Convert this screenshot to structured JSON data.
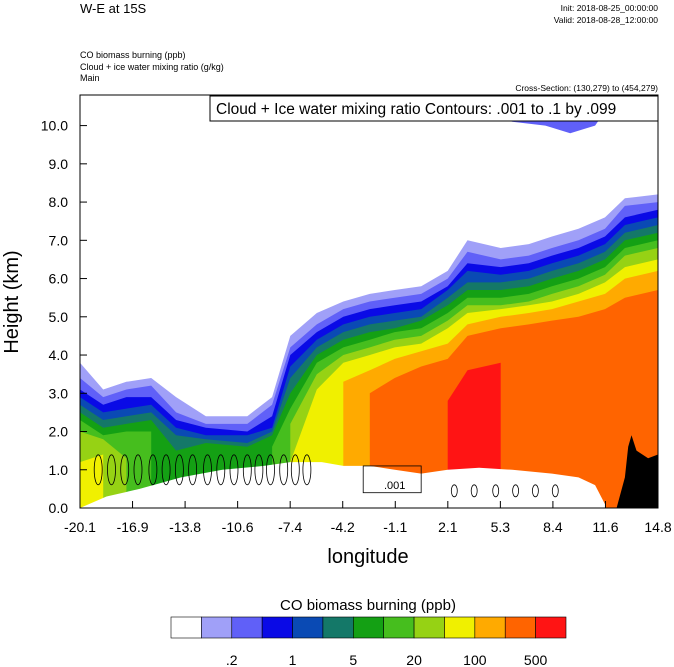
{
  "header": {
    "title": "W-E at 15S",
    "init": "Init: 2018-08-25_00:00:00",
    "valid": "Valid: 2018-08-28_12:00:00",
    "field_lines": [
      "CO biomass burning   (ppb)",
      "Cloud + ice water mixing ratio   (g/kg)",
      "Main"
    ],
    "cross_section": "Cross-Section: (130,279) to (454,279)"
  },
  "chart_data": {
    "type": "heatmap",
    "title": "W-E at 15S",
    "xlabel": "longitude",
    "ylabel": "Height (km)",
    "x_ticks": [
      "-20.1",
      "-16.9",
      "-13.8",
      "-10.6",
      "-7.4",
      "-4.2",
      "-1.1",
      "2.1",
      "5.3",
      "8.4",
      "11.6",
      "14.8"
    ],
    "x_range": [
      -20.1,
      14.8
    ],
    "y_ticks": [
      "0.0",
      "1.0",
      "2.0",
      "3.0",
      "4.0",
      "5.0",
      "6.0",
      "7.0",
      "8.0",
      "9.0",
      "10.0"
    ],
    "y_range": [
      0,
      10.8
    ],
    "contour_annotation": "Cloud + Ice water mixing ratio Contours: .001 to .1 by .099",
    "contour_label": ".001",
    "colorbar": {
      "title": "CO biomass burning  (ppb)",
      "colors": [
        "#ffffff",
        "#a0a0f8",
        "#6060f8",
        "#0a0ae6",
        "#0a4ab4",
        "#147868",
        "#14a014",
        "#46be1e",
        "#96d214",
        "#f0f000",
        "#ffaa00",
        "#ff6400",
        "#ff1414"
      ],
      "tick_labels": [
        ".2",
        "1",
        "5",
        "20",
        "100",
        "500"
      ],
      "tick_bins": [
        2,
        4,
        6,
        8,
        10,
        12
      ]
    },
    "profiles": [
      {
        "x": -20.1,
        "bands": [
          3.8,
          3.4,
          3.1,
          2.9,
          2.7,
          2.5,
          2.3,
          2.0,
          1.2,
          0.0,
          -1.0,
          -1.0
        ]
      },
      {
        "x": -18.7,
        "bands": [
          3.1,
          2.9,
          2.7,
          2.5,
          2.3,
          2.1,
          1.9,
          1.8,
          1.4,
          -1.0,
          -1.0,
          -1.0
        ]
      },
      {
        "x": -17.3,
        "bands": [
          3.3,
          3.1,
          2.9,
          2.6,
          2.4,
          2.2,
          2.0,
          1.3,
          -1.0,
          -1.0,
          -1.0,
          -1.0
        ]
      },
      {
        "x": -15.8,
        "bands": [
          3.4,
          3.2,
          2.9,
          2.7,
          2.5,
          2.3,
          2.0,
          -1.0,
          -1.0,
          -1.0,
          -1.0,
          -1.0
        ]
      },
      {
        "x": -14.3,
        "bands": [
          2.9,
          2.5,
          2.3,
          2.1,
          1.9,
          1.5,
          -1.0,
          -1.0,
          -1.0,
          -1.0,
          -1.0,
          -1.0
        ]
      },
      {
        "x": -12.5,
        "bands": [
          2.4,
          2.2,
          2.1,
          1.9,
          1.8,
          1.7,
          -1.0,
          -1.0,
          -1.0,
          -1.0,
          -1.0,
          -1.0
        ]
      },
      {
        "x": -10.0,
        "bands": [
          2.4,
          2.2,
          2.0,
          1.9,
          1.7,
          1.6,
          -1.0,
          -1.0,
          -1.0,
          -1.0,
          -1.0,
          -1.0
        ]
      },
      {
        "x": -8.5,
        "bands": [
          2.9,
          2.7,
          2.4,
          2.1,
          2.0,
          1.9,
          1.6,
          -1.0,
          -1.0,
          -1.0,
          -1.0,
          -1.0
        ]
      },
      {
        "x": -7.4,
        "bands": [
          4.5,
          4.2,
          4.0,
          3.7,
          3.4,
          3.0,
          2.6,
          2.2,
          1.2,
          -1.0,
          -1.0,
          -1.0
        ]
      },
      {
        "x": -5.8,
        "bands": [
          5.1,
          4.8,
          4.6,
          4.4,
          4.2,
          4.0,
          3.8,
          3.5,
          3.1,
          -1.0,
          -1.0,
          -1.0
        ]
      },
      {
        "x": -4.2,
        "bands": [
          5.4,
          5.2,
          5.0,
          4.8,
          4.6,
          4.4,
          4.2,
          4.0,
          3.8,
          3.3,
          -1.0,
          -1.0
        ]
      },
      {
        "x": -2.6,
        "bands": [
          5.6,
          5.4,
          5.2,
          5.0,
          4.8,
          4.6,
          4.4,
          4.2,
          4.0,
          3.6,
          3.0,
          -1.0
        ]
      },
      {
        "x": -1.1,
        "bands": [
          5.7,
          5.5,
          5.3,
          5.1,
          4.9,
          4.7,
          4.6,
          4.4,
          4.2,
          3.9,
          3.4,
          -1.0
        ]
      },
      {
        "x": 0.5,
        "bands": [
          5.8,
          5.6,
          5.4,
          5.2,
          5.0,
          4.9,
          4.7,
          4.5,
          4.3,
          4.1,
          3.7,
          -1.0
        ]
      },
      {
        "x": 2.1,
        "bands": [
          6.2,
          6.0,
          5.8,
          5.7,
          5.5,
          5.3,
          5.1,
          4.9,
          4.7,
          4.3,
          3.9,
          2.8
        ]
      },
      {
        "x": 3.3,
        "bands": [
          7.0,
          6.7,
          6.4,
          6.2,
          5.9,
          5.7,
          5.5,
          5.3,
          5.1,
          4.8,
          4.5,
          3.6
        ]
      },
      {
        "x": 5.3,
        "bands": [
          6.8,
          6.5,
          6.3,
          6.1,
          5.9,
          5.7,
          5.5,
          5.3,
          5.2,
          5.0,
          4.7,
          3.8
        ]
      },
      {
        "x": 7.0,
        "bands": [
          6.9,
          6.6,
          6.4,
          6.2,
          6.0,
          5.8,
          5.6,
          5.4,
          5.3,
          5.1,
          4.8,
          -1.0
        ]
      },
      {
        "x": 8.4,
        "bands": [
          7.1,
          6.8,
          6.6,
          6.4,
          6.2,
          6.0,
          5.8,
          5.6,
          5.4,
          5.2,
          4.9,
          -1.0
        ]
      },
      {
        "x": 10.0,
        "bands": [
          7.3,
          7.0,
          6.8,
          6.6,
          6.4,
          6.2,
          6.0,
          5.8,
          5.6,
          5.4,
          5.0,
          -1.0
        ]
      },
      {
        "x": 11.6,
        "bands": [
          7.6,
          7.3,
          7.1,
          6.9,
          6.7,
          6.5,
          6.3,
          6.1,
          5.9,
          5.6,
          5.2,
          -1.0
        ]
      },
      {
        "x": 12.8,
        "bands": [
          8.1,
          7.9,
          7.6,
          7.4,
          7.2,
          7.0,
          6.8,
          6.6,
          6.3,
          6.0,
          5.5,
          -1.0
        ]
      },
      {
        "x": 14.8,
        "bands": [
          8.2,
          8.0,
          7.8,
          7.6,
          7.4,
          7.2,
          7.0,
          6.8,
          6.5,
          6.2,
          5.7,
          -1.0
        ]
      }
    ],
    "lower_boundary": [
      {
        "x": -20.1,
        "h": 0.0
      },
      {
        "x": -18.5,
        "h": 0.3
      },
      {
        "x": -16.5,
        "h": 0.5
      },
      {
        "x": -14.0,
        "h": 0.8
      },
      {
        "x": -11.5,
        "h": 1.0
      },
      {
        "x": -9.0,
        "h": 1.1
      },
      {
        "x": -7.4,
        "h": 1.2
      },
      {
        "x": -5.5,
        "h": 1.2
      },
      {
        "x": -4.2,
        "h": 1.1
      },
      {
        "x": -2.6,
        "h": 1.1
      },
      {
        "x": -1.1,
        "h": 1.0
      },
      {
        "x": 0.5,
        "h": 0.9
      },
      {
        "x": 2.1,
        "h": 1.0
      },
      {
        "x": 4.0,
        "h": 1.05
      },
      {
        "x": 6.0,
        "h": 1.0
      },
      {
        "x": 8.4,
        "h": 0.9
      },
      {
        "x": 10.0,
        "h": 0.8
      },
      {
        "x": 11.0,
        "h": 0.6
      },
      {
        "x": 11.6,
        "h": 0.1
      }
    ],
    "upper_cloud": [
      {
        "x": 4.0,
        "h": 10.8
      },
      {
        "x": 4.5,
        "h": 10.3
      },
      {
        "x": 6.0,
        "h": 10.1
      },
      {
        "x": 8.0,
        "h": 10.0
      },
      {
        "x": 9.5,
        "h": 9.8
      },
      {
        "x": 11.0,
        "h": 10.0
      },
      {
        "x": 11.8,
        "h": 10.5
      },
      {
        "x": 12.2,
        "h": 10.8
      }
    ],
    "terrain": [
      {
        "x": 12.3,
        "h": 0.0
      },
      {
        "x": 12.8,
        "h": 0.8
      },
      {
        "x": 13.0,
        "h": 1.6
      },
      {
        "x": 13.2,
        "h": 1.9
      },
      {
        "x": 13.5,
        "h": 1.5
      },
      {
        "x": 14.2,
        "h": 1.3
      },
      {
        "x": 14.8,
        "h": 1.4
      }
    ],
    "contour_columns": [
      -19.0,
      -18.2,
      -17.4,
      -16.6,
      -15.7,
      -14.9,
      -14.1,
      -13.3,
      -12.4,
      -11.6,
      -10.8,
      -10.0,
      -9.3,
      -8.6,
      -7.8,
      -7.1,
      -6.4
    ]
  }
}
